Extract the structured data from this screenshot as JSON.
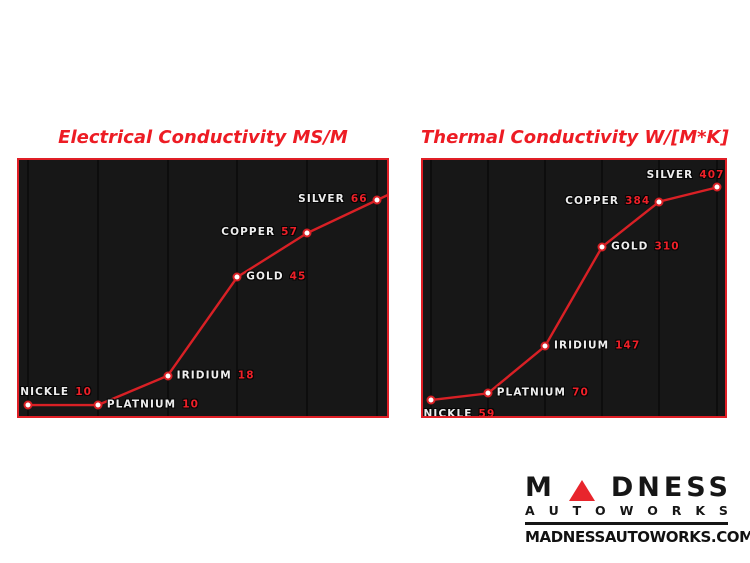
{
  "colors": {
    "accent_red": "#d92025",
    "title_red": "#ed1c24",
    "value_red": "#ed2028",
    "plot_bg": "#171717",
    "gridline": "#0d0d0d",
    "label_white": "#ededed",
    "logo_black": "#161616",
    "page_bg": "#ffffff"
  },
  "chart_data": [
    {
      "type": "line",
      "title": "Electrical Conductivity MS/M",
      "categories": [
        "NICKLE",
        "PLATNIUM",
        "IRIDIUM",
        "GOLD",
        "COPPER",
        "SILVER"
      ],
      "values": [
        10,
        10,
        18,
        45,
        57,
        66
      ],
      "xlabel": "",
      "ylabel": "",
      "ylim": [
        7,
        77
      ],
      "grid": "vertical-only",
      "legend": "none",
      "line_color": "#d92025",
      "marker": "white-circle-red-ring",
      "label_positions": [
        "above",
        "right",
        "right",
        "right",
        "left",
        "left"
      ],
      "extend_line_to_right_edge": true
    },
    {
      "type": "line",
      "title": "Thermal Conductivity W/[M*K]",
      "categories": [
        "NICKLE",
        "PLATNIUM",
        "IRIDIUM",
        "GOLD",
        "COPPER",
        "SILVER"
      ],
      "values": [
        59,
        70,
        147,
        310,
        384,
        407
      ],
      "xlabel": "",
      "ylabel": "",
      "ylim": [
        33,
        452
      ],
      "grid": "vertical-only",
      "legend": "none",
      "line_color": "#d92025",
      "marker": "white-circle-red-ring",
      "label_positions": [
        "below",
        "right",
        "right",
        "right",
        "left",
        "above-left"
      ],
      "extend_line_to_right_edge": false
    }
  ],
  "logo": {
    "brand_name": "MADNESS",
    "brand_prefix": "M",
    "triangle_letter": "A",
    "brand_suffix": "DNESS",
    "subtitle": "AUTOWORKS",
    "website": "MADNESSAUTOWORKS.COM"
  }
}
